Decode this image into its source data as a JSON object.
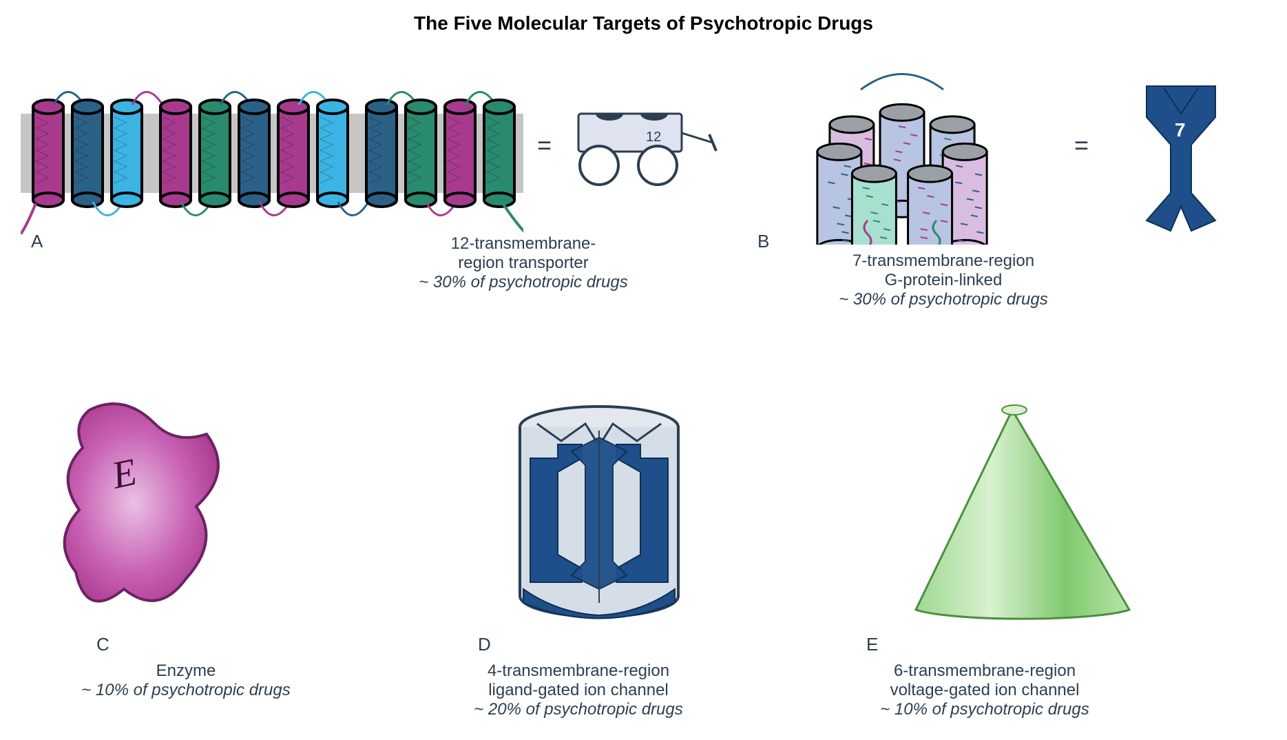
{
  "title": "The Five Molecular Targets of Psychotropic Drugs",
  "title_fontsize": 28,
  "label_fontsize": 24,
  "background_color": "#ffffff",
  "panels": {
    "A": {
      "letter": "A",
      "type": "membrane-transporter",
      "membrane_color": "#c0c0c0",
      "cylinder_colors": [
        "#a83a8e",
        "#2b6187",
        "#3bb4e3",
        "#a83a8e",
        "#2a8a6e",
        "#2b6187",
        "#a83a8e",
        "#3bb4e3",
        "#2b6187",
        "#2a8a6e",
        "#a83a8e",
        "#2a8a6e"
      ],
      "cylinder_outline": "#000000",
      "caption_line1": "12-transmembrane-",
      "caption_line2": "region transporter",
      "caption_sub": "~ 30% of psychotropic drugs",
      "icon": {
        "body_fill": "#dee3ef",
        "stroke": "#2c3e50",
        "wheel_fill": "#ffffff",
        "label": "12"
      }
    },
    "B": {
      "letter": "B",
      "type": "gpcr",
      "cylinder_tops": "#9aa0a6",
      "cylinder_colors": [
        "#b7c4e2",
        "#b7c4e2",
        "#d9bde0",
        "#b7c4e2",
        "#a8e0d0",
        "#b7c4e2",
        "#d9bde0"
      ],
      "cylinder_outline": "#000000",
      "loop_colors": [
        "#a83a8e",
        "#2a8a6e",
        "#2b6187"
      ],
      "caption_line1": "7-transmembrane-region",
      "caption_line2": "G-protein-linked",
      "caption_sub": "~ 30% of psychotropic drugs",
      "icon": {
        "fill": "#1e4f8a",
        "label": "7",
        "label_color": "#ffffff"
      }
    },
    "C": {
      "letter": "C",
      "type": "enzyme",
      "fill_gradient": [
        "#d373c4",
        "#a83a8e"
      ],
      "outline": "#6b2360",
      "letter_label": "E",
      "caption_line1": "Enzyme",
      "caption_sub": "~ 10% of psychotropic drugs"
    },
    "D": {
      "letter": "D",
      "type": "ligand-gated-channel",
      "body_fill": "#d5dde6",
      "subunit_fill": "#1e4f8a",
      "outline": "#2c3e50",
      "caption_line1": "4-transmembrane-region",
      "caption_line2": "ligand-gated ion channel",
      "caption_sub": "~ 20% of psychotropic drugs"
    },
    "E": {
      "letter": "E",
      "type": "voltage-gated-channel",
      "fill_gradient": [
        "#c9ebc0",
        "#7fc96e",
        "#c9ebc0"
      ],
      "outline": "#4a8f3d",
      "caption_line1": "6-transmembrane-region",
      "caption_line2": "voltage-gated ion channel",
      "caption_sub": "~ 10% of psychotropic drugs"
    }
  }
}
